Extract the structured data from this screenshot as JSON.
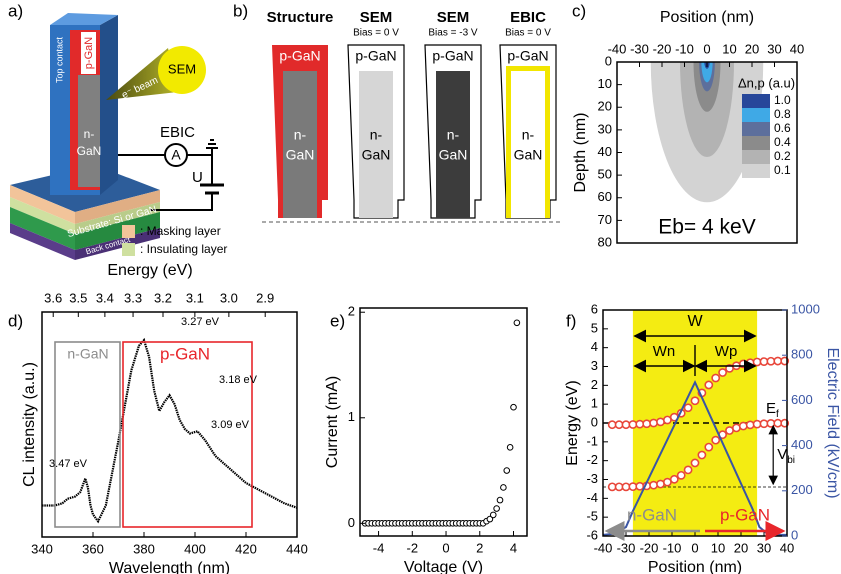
{
  "panel_a": {
    "label": "a)",
    "top_contact": "Top contact",
    "p_gan": "p-GaN",
    "n_gan": [
      "n-",
      "GaN"
    ],
    "beam": "e⁻ beam",
    "sem": "SEM",
    "ebic": "EBIC",
    "ammeter": "A",
    "voltage": "U",
    "substrate": "Substrate: Si or GaN",
    "back_contact": "Back contact",
    "legend": [
      ": Masking layer",
      ": Insulating layer"
    ]
  },
  "panel_b": {
    "label": "b)",
    "columns": [
      {
        "title": "Structure",
        "p_label": "p-GaN",
        "n_label": [
          "n-",
          "GaN"
        ]
      },
      {
        "title": "SEM",
        "subtitle": "Bias = 0 V",
        "p_label": "p-GaN",
        "n_label": [
          "n-",
          "GaN"
        ]
      },
      {
        "title": "SEM",
        "subtitle": "Bias = -3 V",
        "p_label": "p-GaN",
        "n_label": [
          "n-",
          "GaN"
        ]
      },
      {
        "title": "EBIC",
        "subtitle": "Bias = 0 V",
        "p_label": "p-GaN",
        "n_label": [
          "n-",
          "GaN"
        ]
      }
    ]
  },
  "chart_data": [
    {
      "type": "contour",
      "panel_label": "c)",
      "xlabel": "Position (nm)",
      "ylabel": "Depth (nm)",
      "xlim": [
        -40,
        40
      ],
      "xticks": [
        -40,
        -30,
        -20,
        -10,
        0,
        10,
        20,
        30,
        40
      ],
      "ylim": [
        0,
        80
      ],
      "yticks": [
        0,
        10,
        20,
        30,
        40,
        50,
        60,
        70,
        80
      ],
      "y_inverted": true,
      "x_axis_position": "top",
      "legend_title": "Δn,p (a.u)",
      "levels": [
        {
          "value": 1,
          "label": "1.0"
        },
        0.8,
        0.6,
        0.4,
        0.2,
        0.1
      ],
      "colors": [
        "#27479a",
        "#3fa9e6",
        "#5d6f9c",
        "#8b8b8b",
        "#b3b3b3",
        "#d3d3d3"
      ],
      "extent_halfwidth": [
        1.2,
        2.5,
        3.5,
        6,
        12,
        25
      ],
      "extent_depth": [
        3,
        9,
        13,
        22,
        42,
        62
      ],
      "annotation": "Eb= 4 keV"
    },
    {
      "type": "line",
      "panel_label": "d)",
      "xlabel": "Wavelength (nm)",
      "ylabel": "CL intensity (a.u.)",
      "x2label": "Energy (eV)",
      "x": [
        340,
        345,
        348,
        350,
        353,
        355,
        357,
        358,
        359,
        360,
        362,
        365,
        370,
        375,
        378,
        380,
        382,
        384,
        386,
        388,
        390,
        392,
        394,
        396,
        398,
        401,
        404,
        408,
        412,
        416,
        420,
        425,
        430,
        435,
        440
      ],
      "values": [
        0.14,
        0.14,
        0.15,
        0.17,
        0.18,
        0.2,
        0.26,
        0.22,
        0.14,
        0.1,
        0.07,
        0.14,
        0.43,
        0.74,
        0.85,
        0.875,
        0.8,
        0.65,
        0.56,
        0.6,
        0.63,
        0.59,
        0.52,
        0.48,
        0.46,
        0.47,
        0.43,
        0.36,
        0.32,
        0.28,
        0.24,
        0.21,
        0.18,
        0.15,
        0.13
      ],
      "color": "#000000",
      "xlim": [
        340,
        440
      ],
      "xticks": [
        340,
        360,
        380,
        400,
        420,
        440
      ],
      "ylim": [
        0,
        1
      ],
      "x2ticks": [
        3.6,
        3.5,
        3.4,
        3.3,
        3.2,
        3.1,
        {
          "value": 3,
          "label": "3.0"
        },
        2.9
      ],
      "annotations": [
        "3.47 eV",
        "3.27 eV",
        "3.18 eV",
        "3.09 eV"
      ],
      "regions": [
        {
          "label": "n-GaN",
          "color": "#8c8c8c"
        },
        {
          "label": "p-GaN",
          "color": "#e8262b"
        }
      ]
    },
    {
      "type": "scatter",
      "panel_label": "e)",
      "xlabel": "Voltage (V)",
      "ylabel": "Current (mA)",
      "x": [
        -4.8,
        -4.6,
        -4.4,
        -4.2,
        -4,
        -3.8,
        -3.6,
        -3.4,
        -3.2,
        -3,
        -2.8,
        -2.6,
        -2.4,
        -2.2,
        -2,
        -1.8,
        -1.6,
        -1.4,
        -1.2,
        -1,
        -0.8,
        -0.6,
        -0.4,
        -0.2,
        0,
        0.2,
        0.4,
        0.6,
        0.8,
        1,
        1.2,
        1.4,
        1.6,
        1.8,
        2,
        2.2,
        2.4,
        2.6,
        2.8,
        3,
        3.2,
        3.4,
        3.6,
        3.8,
        4,
        4.2
      ],
      "values": [
        0,
        0,
        0,
        0,
        0,
        0,
        0,
        0,
        0,
        0,
        0,
        0,
        0,
        0,
        0,
        0,
        0,
        0,
        0,
        0,
        0,
        0,
        0,
        0,
        0,
        0,
        0,
        0,
        0,
        0,
        0,
        0,
        0,
        0,
        0,
        0,
        0.02,
        0.04,
        0.08,
        0.14,
        0.22,
        0.34,
        0.5,
        0.72,
        1.1,
        1.9
      ],
      "color": "#000000",
      "xlim": [
        -5.1,
        4.8
      ],
      "xticks": [
        -4,
        -2,
        0,
        2,
        4
      ],
      "ylim": [
        -0.12,
        2.04
      ],
      "yticks": [
        0,
        1,
        2
      ]
    },
    {
      "type": "line",
      "panel_label": "f)",
      "xlabel": "Position (nm)",
      "ylabel": "Energy (eV)",
      "y2label": "Electric Field (kV/cm)",
      "xlim": [
        -40,
        40
      ],
      "xticks": [
        -40,
        -30,
        -20,
        -10,
        0,
        10,
        20,
        30,
        40
      ],
      "ylim": [
        -6,
        6
      ],
      "yticks": [
        -6,
        -5,
        -4,
        -3,
        -2,
        -1,
        0,
        1,
        2,
        3,
        4,
        5,
        6
      ],
      "y2lim": [
        0,
        1000
      ],
      "y2ticks": [
        0,
        200,
        400,
        600,
        800,
        1000
      ],
      "shaded_region": [
        -27,
        27
      ],
      "shaded_color": "#f4ec12",
      "hlines": [
        0,
        -3.4
      ],
      "series": [
        {
          "x": [
            -36,
            -33,
            -30,
            -27,
            -24,
            -21,
            -18,
            -15,
            -12,
            -9,
            -6,
            -3,
            0,
            3,
            6,
            9,
            12,
            15,
            18,
            21,
            24,
            27,
            30,
            33,
            36,
            39
          ],
          "values": [
            -0.09,
            -0.09,
            -0.09,
            -0.08,
            -0.06,
            -0.04,
            0,
            0.06,
            0.16,
            0.31,
            0.52,
            0.81,
            1.18,
            1.6,
            2.02,
            2.39,
            2.68,
            2.9,
            3.04,
            3.14,
            3.2,
            3.24,
            3.26,
            3.28,
            3.29,
            3.29
          ],
          "color": "#e8463a",
          "marker": "circle"
        },
        {
          "x": [
            -36,
            -33,
            -30,
            -27,
            -24,
            -21,
            -18,
            -15,
            -12,
            -9,
            -6,
            -3,
            0,
            3,
            6,
            9,
            12,
            15,
            18,
            21,
            24,
            27,
            30,
            33,
            36,
            39
          ],
          "values": [
            -3.39,
            -3.39,
            -3.39,
            -3.38,
            -3.36,
            -3.34,
            -3.3,
            -3.24,
            -3.14,
            -2.99,
            -2.78,
            -2.49,
            -2.12,
            -1.7,
            -1.28,
            -0.91,
            -0.62,
            -0.4,
            -0.26,
            -0.16,
            -0.1,
            -0.06,
            -0.04,
            -0.02,
            -0.01,
            -0.01
          ],
          "color": "#e8463a",
          "marker": "circle"
        },
        {
          "x": [
            -40,
            -35,
            -30,
            -27,
            0,
            25,
            28,
            32,
            40
          ],
          "values": [
            5,
            10,
            40,
            110,
            680,
            120,
            40,
            5,
            5
          ],
          "color": "#3a55a4",
          "axis": "y2"
        }
      ],
      "annotations": [
        "W",
        "Wn",
        "Wp"
      ],
      "ef_label": {
        "main": "E",
        "sub": "f"
      },
      "vbi_label": {
        "main": "V",
        "sub": "bi"
      },
      "n_label": "n-GaN",
      "p_label": "p-GaN"
    }
  ]
}
